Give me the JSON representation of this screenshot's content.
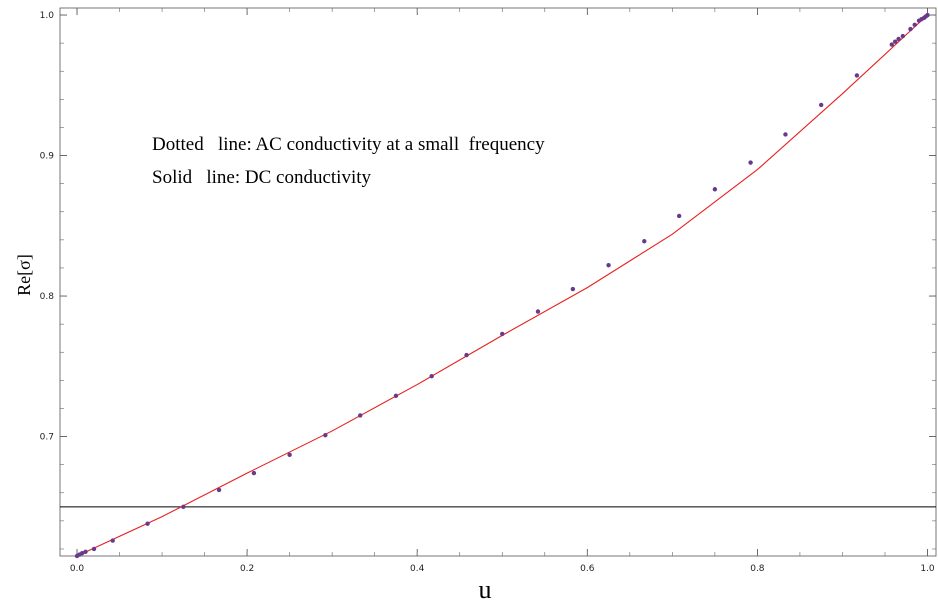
{
  "chart_data": {
    "type": "line",
    "title": "",
    "xlabel": "u",
    "ylabel": "Re[σ]",
    "xlim": [
      -0.02,
      1.01
    ],
    "ylim": [
      0.615,
      1.005
    ],
    "x_ticks": [
      0.0,
      0.2,
      0.4,
      0.6,
      0.8,
      1.0
    ],
    "x_tick_labels": [
      "0.0",
      "0.2",
      "0.4",
      "0.6",
      "0.8",
      "1.0"
    ],
    "y_ticks": [
      0.7,
      0.8,
      0.9,
      1.0
    ],
    "y_tick_labels": [
      "0.7",
      "0.8",
      "0.9",
      "1.0"
    ],
    "grid": false,
    "legend": "none",
    "annotations": [
      "Dotted   line: AC conductivity at a small  frequency",
      "Solid   line: DC conductivity"
    ],
    "horizontal_line": {
      "y": 0.65,
      "color": "#000000"
    },
    "series": [
      {
        "style": "solid",
        "color": "#e8201e",
        "x": [
          0.0,
          0.1,
          0.2,
          0.3,
          0.4,
          0.5,
          0.6,
          0.7,
          0.8,
          0.9,
          1.0
        ],
        "y": [
          0.615,
          0.643,
          0.674,
          0.704,
          0.737,
          0.772,
          0.806,
          0.844,
          0.89,
          0.944,
          1.0
        ]
      },
      {
        "style": "dotted",
        "color": "#6a3a8a",
        "x": [
          0.0,
          0.003,
          0.006,
          0.01,
          0.02,
          0.042,
          0.083,
          0.125,
          0.167,
          0.208,
          0.25,
          0.292,
          0.333,
          0.375,
          0.417,
          0.458,
          0.5,
          0.542,
          0.583,
          0.625,
          0.667,
          0.708,
          0.75,
          0.792,
          0.833,
          0.875,
          0.917,
          0.958,
          0.962,
          0.966,
          0.971,
          0.98,
          0.985,
          0.99,
          0.993,
          0.996,
          0.998,
          1.0
        ],
        "y": [
          0.615,
          0.616,
          0.617,
          0.618,
          0.62,
          0.626,
          0.638,
          0.65,
          0.662,
          0.674,
          0.687,
          0.701,
          0.715,
          0.729,
          0.743,
          0.758,
          0.773,
          0.789,
          0.805,
          0.822,
          0.839,
          0.857,
          0.876,
          0.895,
          0.915,
          0.936,
          0.957,
          0.979,
          0.981,
          0.983,
          0.985,
          0.99,
          0.993,
          0.996,
          0.997,
          0.998,
          0.999,
          1.0
        ]
      }
    ]
  }
}
